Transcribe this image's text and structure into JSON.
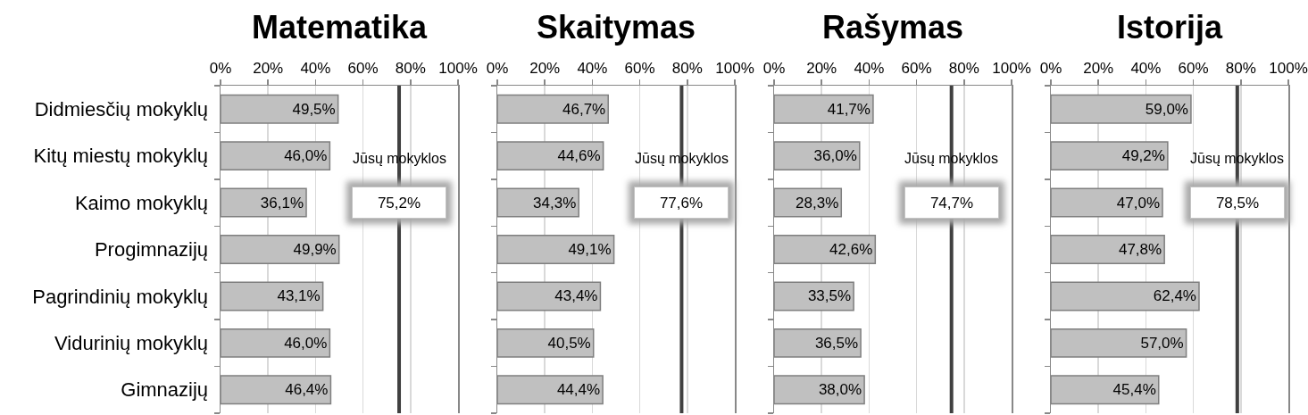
{
  "chart_data": [
    {
      "type": "bar",
      "orientation": "horizontal",
      "title": "Matematika",
      "categories": [
        "Didmiesčių mokyklų",
        "Kitų miestų mokyklų",
        "Kaimo mokyklų",
        "Progimnazijų",
        "Pagrindinių mokyklų",
        "Vidurinių mokyklų",
        "Gimnazijų"
      ],
      "values": [
        49.5,
        46.0,
        36.1,
        49.9,
        43.1,
        46.0,
        46.4
      ],
      "value_labels": [
        "49,5%",
        "46,0%",
        "36,1%",
        "49,9%",
        "43,1%",
        "46,0%",
        "46,4%"
      ],
      "color": "#c0c0c0",
      "xlim": [
        0,
        100
      ],
      "xticks": [
        {
          "value": 0,
          "label": "0%"
        },
        {
          "value": 20,
          "label": "20%"
        },
        {
          "value": 40,
          "label": "40%"
        },
        {
          "value": 60,
          "label": "60%"
        },
        {
          "value": 80,
          "label": "80%"
        },
        {
          "value": 100,
          "label": "100%"
        }
      ],
      "grid": "x",
      "ref_lines": [
        {
          "axis": "x",
          "value": 75.2,
          "label": "Jūsų mokyklos",
          "color": "#404040"
        }
      ],
      "annotations": [
        {
          "text": "75,2%",
          "x": 75.2,
          "y": "Kaimo mokyklų"
        }
      ]
    },
    {
      "type": "bar",
      "orientation": "horizontal",
      "title": "Skaitymas",
      "categories": [
        "Didmiesčių mokyklų",
        "Kitų miestų mokyklų",
        "Kaimo mokyklų",
        "Progimnazijų",
        "Pagrindinių mokyklų",
        "Vidurinių mokyklų",
        "Gimnazijų"
      ],
      "values": [
        46.7,
        44.6,
        34.3,
        49.1,
        43.4,
        40.5,
        44.4
      ],
      "value_labels": [
        "46,7%",
        "44,6%",
        "34,3%",
        "49,1%",
        "43,4%",
        "40,5%",
        "44,4%"
      ],
      "color": "#c0c0c0",
      "xlim": [
        0,
        100
      ],
      "xticks": [
        {
          "value": 0,
          "label": "0%"
        },
        {
          "value": 20,
          "label": "20%"
        },
        {
          "value": 40,
          "label": "40%"
        },
        {
          "value": 60,
          "label": "60%"
        },
        {
          "value": 80,
          "label": "80%"
        },
        {
          "value": 100,
          "label": "100%"
        }
      ],
      "grid": "x",
      "tick_labels": "x",
      "ref_lines": [
        {
          "axis": "x",
          "value": 77.6,
          "label": "Jūsų mokyklos",
          "color": "#404040"
        }
      ],
      "annotations": [
        {
          "text": "77,6%",
          "x": 77.6,
          "y": "Kaimo mokyklų"
        }
      ]
    },
    {
      "type": "bar",
      "orientation": "horizontal",
      "title": "Rašymas",
      "categories": [
        "Didmiesčių mokyklų",
        "Kitų miestų mokyklų",
        "Kaimo mokyklų",
        "Progimnazijų",
        "Pagrindinių mokyklų",
        "Vidurinių mokyklų",
        "Gimnazijų"
      ],
      "values": [
        41.7,
        36.0,
        28.3,
        42.6,
        33.5,
        36.5,
        38.0
      ],
      "value_labels": [
        "41,7%",
        "36,0%",
        "28,3%",
        "42,6%",
        "33,5%",
        "36,5%",
        "38,0%"
      ],
      "color": "#c0c0c0",
      "xlim": [
        0,
        100
      ],
      "xticks": [
        {
          "value": 0,
          "label": "0%"
        },
        {
          "value": 20,
          "label": "20%"
        },
        {
          "value": 40,
          "label": "40%"
        },
        {
          "value": 60,
          "label": "60%"
        },
        {
          "value": 80,
          "label": "80%"
        },
        {
          "value": 100,
          "label": "100%"
        }
      ],
      "grid": "x",
      "tick_labels": "x",
      "ref_lines": [
        {
          "axis": "x",
          "value": 74.7,
          "label": "Jūsų mokyklos",
          "color": "#404040"
        }
      ],
      "annotations": [
        {
          "text": "74,7%",
          "x": 74.7,
          "y": "Kaimo mokyklų"
        }
      ]
    },
    {
      "type": "bar",
      "orientation": "horizontal",
      "title": "Istorija",
      "categories": [
        "Didmiesčių mokyklų",
        "Kitų miestų mokyklų",
        "Kaimo mokyklų",
        "Progimnazijų",
        "Pagrindinių mokyklų",
        "Vidurinių mokyklų",
        "Gimnazijų"
      ],
      "values": [
        59.0,
        49.2,
        47.0,
        47.8,
        62.4,
        57.0,
        45.4
      ],
      "value_labels": [
        "59,0%",
        "49,2%",
        "47,0%",
        "47,8%",
        "62,4%",
        "57,0%",
        "45,4%"
      ],
      "color": "#c0c0c0",
      "xlim": [
        0,
        100
      ],
      "xticks": [
        {
          "value": 0,
          "label": "0%"
        },
        {
          "value": 20,
          "label": "20%"
        },
        {
          "value": 40,
          "label": "40%"
        },
        {
          "value": 60,
          "label": "60%"
        },
        {
          "value": 80,
          "label": "80%"
        },
        {
          "value": 100,
          "label": "100%"
        }
      ],
      "grid": "x",
      "tick_labels": "x",
      "ref_lines": [
        {
          "axis": "x",
          "value": 78.5,
          "label": "Jūsų mokyklos",
          "color": "#404040"
        }
      ],
      "annotations": [
        {
          "text": "78,5%",
          "x": 78.5,
          "y": "Kaimo mokyklų"
        }
      ]
    }
  ]
}
